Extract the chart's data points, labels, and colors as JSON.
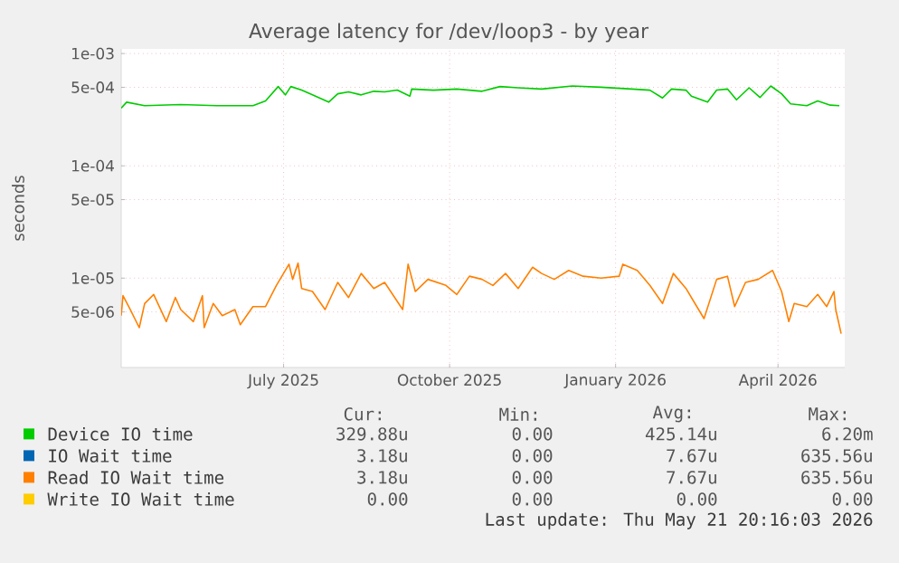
{
  "chart_data": {
    "type": "line",
    "title": "Average latency for /dev/loop3 - by year",
    "ylabel": "seconds",
    "log": true,
    "grid": true,
    "legend": "bottom",
    "marker": "none",
    "line_style": "solid",
    "xlim": [
      "2025-04-02",
      "2026-05-08"
    ],
    "xticks": [
      {
        "value": "2025-07-01",
        "label": "July 2025"
      },
      {
        "value": "2025-10-01",
        "label": "October 2025"
      },
      {
        "value": "2026-01-01",
        "label": "January 2026"
      },
      {
        "value": "2026-04-01",
        "label": "April 2026"
      }
    ],
    "ylim": [
      1.6e-06,
      0.0011
    ],
    "yticks": [
      {
        "value": 0.001,
        "label": "1e-03"
      },
      {
        "value": 0.0005,
        "label": "5e-04"
      },
      {
        "value": 0.0001,
        "label": "1e-04"
      },
      {
        "value": 5e-05,
        "label": "5e-05"
      },
      {
        "value": 1e-05,
        "label": "1e-05"
      },
      {
        "value": 5e-06,
        "label": "5e-06"
      }
    ],
    "series": [
      {
        "name": "Device IO time",
        "color": "#00cc00",
        "x": [
          "2025-04-02",
          "2025-04-05",
          "2025-04-15",
          "2025-05-05",
          "2025-05-25",
          "2025-06-14",
          "2025-06-21",
          "2025-06-28",
          "2025-07-02",
          "2025-07-05",
          "2025-07-11",
          "2025-07-17",
          "2025-07-26",
          "2025-07-31",
          "2025-08-06",
          "2025-08-13",
          "2025-08-20",
          "2025-08-26",
          "2025-09-02",
          "2025-09-09",
          "2025-09-10",
          "2025-09-22",
          "2025-10-05",
          "2025-10-19",
          "2025-10-29",
          "2025-11-08",
          "2025-11-21",
          "2025-12-08",
          "2025-12-24",
          "2026-01-10",
          "2026-01-20",
          "2026-01-27",
          "2026-02-01",
          "2026-02-09",
          "2026-02-12",
          "2026-02-21",
          "2026-02-26",
          "2026-03-04",
          "2026-03-09",
          "2026-03-16",
          "2026-03-22",
          "2026-03-28",
          "2026-04-03",
          "2026-04-08",
          "2026-04-17",
          "2026-04-23",
          "2026-04-30",
          "2026-05-05"
        ],
        "values": [
          0.000326,
          0.000369,
          0.000343,
          0.000351,
          0.000343,
          0.000343,
          0.000378,
          0.000508,
          0.000428,
          0.000508,
          0.000472,
          0.000428,
          0.000369,
          0.000438,
          0.000455,
          0.000428,
          0.000461,
          0.000455,
          0.000472,
          0.000417,
          0.000483,
          0.000472,
          0.000483,
          0.000461,
          0.000508,
          0.000495,
          0.000483,
          0.000514,
          0.000501,
          0.000483,
          0.000472,
          0.000402,
          0.000483,
          0.000472,
          0.000417,
          0.000369,
          0.000472,
          0.000483,
          0.000387,
          0.000495,
          0.000406,
          0.000514,
          0.000438,
          0.000356,
          0.000343,
          0.000378,
          0.000347,
          0.000343
        ]
      },
      {
        "name": "IO Wait time",
        "color": "#0066b3"
      },
      {
        "name": "Read IO Wait time",
        "color": "#ff8000",
        "x": [
          "2025-04-02",
          "2025-04-03",
          "2025-04-07",
          "2025-04-12",
          "2025-04-15",
          "2025-04-20",
          "2025-04-27",
          "2025-05-02",
          "2025-05-05",
          "2025-05-12",
          "2025-05-17",
          "2025-05-18",
          "2025-05-23",
          "2025-05-28",
          "2025-06-04",
          "2025-06-07",
          "2025-06-14",
          "2025-06-21",
          "2025-06-27",
          "2025-07-04",
          "2025-07-06",
          "2025-07-09",
          "2025-07-11",
          "2025-07-17",
          "2025-07-24",
          "2025-07-31",
          "2025-08-06",
          "2025-08-13",
          "2025-08-20",
          "2025-08-26",
          "2025-09-05",
          "2025-09-08",
          "2025-09-12",
          "2025-09-19",
          "2025-09-29",
          "2025-10-05",
          "2025-10-12",
          "2025-10-19",
          "2025-10-25",
          "2025-11-01",
          "2025-11-08",
          "2025-11-16",
          "2025-11-21",
          "2025-11-28",
          "2025-12-06",
          "2025-12-14",
          "2025-12-24",
          "2026-01-03",
          "2026-01-05",
          "2026-01-13",
          "2026-01-20",
          "2026-01-27",
          "2026-02-02",
          "2026-02-09",
          "2026-02-19",
          "2026-02-26",
          "2026-03-04",
          "2026-03-08",
          "2026-03-14",
          "2026-03-21",
          "2026-03-29",
          "2026-04-03",
          "2026-04-07",
          "2026-04-10",
          "2026-04-17",
          "2026-04-23",
          "2026-04-28",
          "2026-05-02",
          "2026-05-03",
          "2026-05-06"
        ],
        "values": [
          4.63e-06,
          6.98e-06,
          5.25e-06,
          3.62e-06,
          5.94e-06,
          7.15e-06,
          4.1e-06,
          6.72e-06,
          5.25e-06,
          4.1e-06,
          6.98e-06,
          3.62e-06,
          5.94e-06,
          4.63e-06,
          5.25e-06,
          3.85e-06,
          5.58e-06,
          5.58e-06,
          8.61e-06,
          1.33e-05,
          9.75e-06,
          1.36e-05,
          8.09e-06,
          7.6e-06,
          5.25e-06,
          9.16e-06,
          6.72e-06,
          1.1e-05,
          8.09e-06,
          9.16e-06,
          5.25e-06,
          1.33e-05,
          7.6e-06,
          9.75e-06,
          8.61e-06,
          7.15e-06,
          1.04e-05,
          9.75e-06,
          8.61e-06,
          1.1e-05,
          8.09e-06,
          1.25e-05,
          1.1e-05,
          9.75e-06,
          1.17e-05,
          1.04e-05,
          1e-05,
          1.04e-05,
          1.33e-05,
          1.17e-05,
          8.61e-06,
          5.94e-06,
          1.1e-05,
          8.09e-06,
          4.36e-06,
          9.75e-06,
          1.04e-05,
          5.58e-06,
          9.16e-06,
          9.75e-06,
          1.17e-05,
          7.6e-06,
          4.1e-06,
          5.94e-06,
          5.58e-06,
          7.15e-06,
          5.58e-06,
          7.6e-06,
          5.25e-06,
          3.2e-06
        ]
      },
      {
        "name": "Write IO Wait time",
        "color": "#ffcc00"
      }
    ],
    "annotations": [
      "Cur:",
      "Min:",
      "Avg:",
      "Max:",
      "329.88u",
      "0.00",
      "425.14u",
      "6.20m",
      "3.18u",
      "0.00",
      "7.67u",
      "635.56u",
      "3.18u",
      "0.00",
      "7.67u",
      "635.56u",
      "0.00",
      "0.00",
      "0.00",
      "0.00",
      "Last update: Thu May 21 20:16:03 2026"
    ]
  }
}
